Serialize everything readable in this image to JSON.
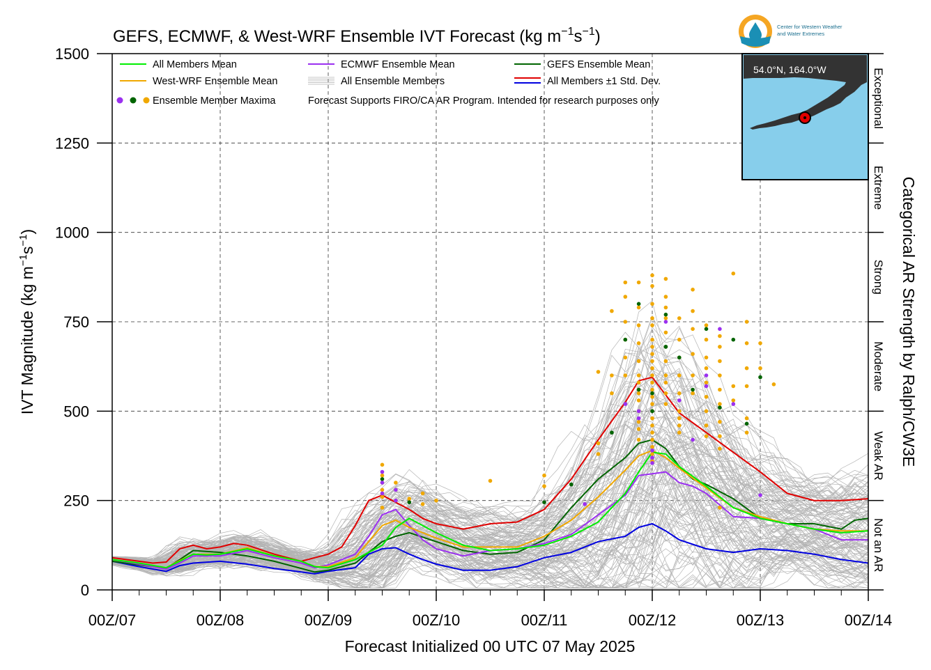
{
  "chart_data": {
    "type": "line",
    "title_main": "GEFS, ECMWF, & West-WRF Ensemble IVT Forecast (kg m",
    "title_unit_tail": "s",
    "title_sup1": "−1",
    "title_sup2": "−1",
    "title_close": ")",
    "xlabel": "Forecast Initialized 00 UTC 07 May 2025",
    "ylabel_main": "IVT Magnitude (kg m",
    "ylabel_tail": "s",
    "ylabel_sup1": "−1",
    "ylabel_sup2": "−1",
    "ylabel_close": ")",
    "right_axis_label": "Categorical AR Strength by Ralph/CW3E",
    "ylim": [
      0,
      1500
    ],
    "xlim": [
      0,
      168
    ],
    "x_units": "forecast hours from 00Z/07",
    "yticks": [
      0,
      250,
      500,
      750,
      1000,
      1250,
      1500
    ],
    "ytick_labels": [
      "0",
      "250",
      "500",
      "750",
      "1000",
      "1250",
      "1500"
    ],
    "xticks": [
      0,
      24,
      48,
      72,
      96,
      120,
      144,
      168
    ],
    "xtick_labels": [
      "00Z/07",
      "00Z/08",
      "00Z/09",
      "00Z/10",
      "00Z/11",
      "00Z/12",
      "00Z/13",
      "00Z/14"
    ],
    "grid": true,
    "categories_right": [
      {
        "label": "Not an AR",
        "from": 0,
        "to": 250
      },
      {
        "label": "Weak AR",
        "from": 250,
        "to": 500
      },
      {
        "label": "Moderate",
        "from": 500,
        "to": 750
      },
      {
        "label": "Strong",
        "from": 750,
        "to": 1000
      },
      {
        "label": "Extreme",
        "from": 1000,
        "to": 1250
      },
      {
        "label": "Exceptional",
        "from": 1250,
        "to": 1500
      }
    ],
    "legend": {
      "placement": "top-left",
      "items": [
        {
          "label": "All Members Mean",
          "color": "#00ee00",
          "kind": "line"
        },
        {
          "label": "ECMWF Ensemble Mean",
          "color": "#9b30f0",
          "kind": "line"
        },
        {
          "label": "GEFS Ensemble Mean",
          "color": "#006400",
          "kind": "line"
        },
        {
          "label": "West-WRF Ensemble Mean",
          "color": "#f0a800",
          "kind": "line"
        },
        {
          "label": "All Ensemble Members",
          "color": "#b0b0b0",
          "kind": "multiline"
        },
        {
          "label": "All Members ±1 Std. Dev.",
          "color": "#e00000",
          "color2": "#0000e0",
          "kind": "dualline"
        },
        {
          "label": "Ensemble Member Maxima",
          "colors": [
            "#9b30f0",
            "#006400",
            "#f0a800"
          ],
          "kind": "dots"
        }
      ],
      "note": "Forecast Supports FIRO/CA AR Program. Intended for research purposes only"
    },
    "inset": {
      "label": "54.0°N, 164.0°W",
      "ocean_color": "#87ceeb",
      "land_color": "#333333"
    },
    "logo": {
      "line1": "Center for Western Weather",
      "line2": "and Water Extremes"
    },
    "series": [
      {
        "name": "All Members Mean",
        "color": "#00ee00",
        "x": [
          0,
          6,
          12,
          15,
          18,
          21,
          24,
          30,
          36,
          42,
          45,
          48,
          54,
          60,
          63,
          66,
          69,
          72,
          78,
          84,
          90,
          96,
          102,
          108,
          114,
          117,
          120,
          123,
          126,
          132,
          138,
          144,
          150,
          156,
          162,
          168
        ],
        "y": [
          85,
          75,
          62,
          80,
          100,
          98,
          100,
          115,
          95,
          80,
          65,
          62,
          85,
          125,
          175,
          200,
          180,
          160,
          125,
          110,
          115,
          125,
          150,
          190,
          270,
          330,
          385,
          380,
          345,
          290,
          230,
          200,
          185,
          170,
          160,
          165
        ]
      },
      {
        "name": "ECMWF Ensemble Mean",
        "color": "#9b30f0",
        "x": [
          0,
          6,
          12,
          15,
          18,
          24,
          30,
          36,
          42,
          45,
          48,
          54,
          57,
          60,
          63,
          66,
          69,
          72,
          78,
          84,
          90,
          96,
          102,
          108,
          114,
          117,
          120,
          123,
          126,
          129,
          132,
          138,
          144,
          150,
          156,
          162,
          168
        ],
        "y": [
          85,
          72,
          58,
          75,
          95,
          95,
          110,
          90,
          75,
          62,
          70,
          100,
          150,
          210,
          225,
          180,
          140,
          115,
          95,
          110,
          115,
          130,
          155,
          210,
          265,
          320,
          325,
          330,
          300,
          290,
          270,
          205,
          200,
          185,
          170,
          140,
          140
        ]
      },
      {
        "name": "GEFS Ensemble Mean",
        "color": "#006400",
        "x": [
          0,
          6,
          12,
          15,
          18,
          24,
          30,
          36,
          42,
          45,
          48,
          54,
          60,
          63,
          66,
          72,
          78,
          84,
          90,
          96,
          102,
          108,
          114,
          117,
          120,
          123,
          126,
          129,
          132,
          138,
          144,
          150,
          156,
          162,
          165,
          168
        ],
        "y": [
          80,
          70,
          60,
          85,
          110,
          105,
          95,
          80,
          60,
          50,
          55,
          75,
          135,
          150,
          160,
          135,
          110,
          100,
          105,
          140,
          230,
          310,
          370,
          410,
          420,
          395,
          345,
          310,
          295,
          255,
          200,
          185,
          185,
          170,
          195,
          200
        ]
      },
      {
        "name": "West-WRF Ensemble Mean",
        "color": "#f0a800",
        "x": [
          0,
          6,
          12,
          15,
          18,
          24,
          30,
          36,
          42,
          45,
          48,
          54,
          57,
          60,
          63,
          66,
          69,
          72,
          78,
          84,
          90,
          96,
          102,
          108,
          114,
          117,
          120,
          123,
          126,
          132,
          138,
          144,
          150,
          156,
          162,
          168
        ],
        "y": [
          85,
          75,
          62,
          82,
          100,
          100,
          118,
          95,
          80,
          65,
          65,
          90,
          135,
          180,
          195,
          175,
          160,
          145,
          120,
          120,
          120,
          150,
          195,
          260,
          335,
          375,
          390,
          370,
          340,
          285,
          230,
          205,
          185,
          170,
          165,
          165
        ]
      },
      {
        "name": "All Members +1 Std. Dev.",
        "color": "#e00000",
        "x": [
          0,
          6,
          9,
          12,
          15,
          18,
          21,
          24,
          27,
          30,
          36,
          42,
          45,
          48,
          51,
          54,
          57,
          60,
          63,
          66,
          69,
          72,
          78,
          84,
          90,
          96,
          102,
          108,
          114,
          117,
          120,
          123,
          126,
          132,
          138,
          144,
          150,
          156,
          162,
          168
        ],
        "y": [
          90,
          80,
          75,
          78,
          115,
          125,
          115,
          120,
          130,
          125,
          100,
          80,
          90,
          100,
          120,
          180,
          250,
          265,
          245,
          225,
          200,
          185,
          170,
          185,
          190,
          225,
          310,
          420,
          525,
          585,
          595,
          545,
          495,
          440,
          385,
          330,
          270,
          250,
          250,
          255
        ]
      },
      {
        "name": "All Members -1 Std. Dev.",
        "color": "#0000e0",
        "x": [
          0,
          6,
          12,
          15,
          18,
          24,
          30,
          36,
          42,
          45,
          48,
          54,
          57,
          60,
          63,
          66,
          69,
          72,
          78,
          84,
          90,
          96,
          102,
          108,
          114,
          117,
          120,
          123,
          126,
          132,
          138,
          144,
          150,
          156,
          162,
          168
        ],
        "y": [
          80,
          65,
          52,
          68,
          75,
          80,
          72,
          60,
          50,
          45,
          52,
          62,
          100,
          115,
          118,
          100,
          85,
          72,
          55,
          55,
          65,
          90,
          105,
          135,
          150,
          175,
          185,
          165,
          140,
          115,
          105,
          115,
          110,
          100,
          85,
          75
        ]
      }
    ],
    "maxima": {
      "ecmwf": [
        [
          60,
          330
        ],
        [
          60,
          300
        ],
        [
          60,
          270
        ],
        [
          63,
          250
        ],
        [
          63,
          280
        ],
        [
          105,
          240
        ],
        [
          114,
          520
        ],
        [
          117,
          480
        ],
        [
          117,
          500
        ],
        [
          120,
          390
        ],
        [
          120,
          370
        ],
        [
          120,
          355
        ],
        [
          123,
          750
        ],
        [
          126,
          530
        ],
        [
          129,
          420
        ],
        [
          132,
          600
        ],
        [
          132,
          570
        ],
        [
          135,
          730
        ],
        [
          138,
          520
        ],
        [
          144,
          265
        ]
      ],
      "gefs": [
        [
          60,
          310
        ],
        [
          66,
          245
        ],
        [
          96,
          245
        ],
        [
          102,
          295
        ],
        [
          111,
          440
        ],
        [
          114,
          700
        ],
        [
          117,
          800
        ],
        [
          117,
          560
        ],
        [
          120,
          550
        ],
        [
          120,
          500
        ],
        [
          123,
          770
        ],
        [
          123,
          680
        ],
        [
          123,
          680
        ],
        [
          126,
          650
        ],
        [
          129,
          560
        ],
        [
          132,
          730
        ],
        [
          135,
          510
        ],
        [
          138,
          700
        ],
        [
          141,
          465
        ],
        [
          144,
          595
        ]
      ],
      "wwrf": [
        [
          60,
          350
        ],
        [
          60,
          320
        ],
        [
          60,
          300
        ],
        [
          60,
          280
        ],
        [
          60,
          260
        ],
        [
          60,
          230
        ],
        [
          63,
          300
        ],
        [
          63,
          280
        ],
        [
          63,
          250
        ],
        [
          66,
          255
        ],
        [
          69,
          270
        ],
        [
          69,
          240
        ],
        [
          72,
          250
        ],
        [
          84,
          305
        ],
        [
          96,
          320
        ],
        [
          96,
          290
        ],
        [
          108,
          380
        ],
        [
          108,
          410
        ],
        [
          111,
          780
        ],
        [
          111,
          600
        ],
        [
          111,
          550
        ],
        [
          114,
          820
        ],
        [
          114,
          750
        ],
        [
          114,
          700
        ],
        [
          114,
          650
        ],
        [
          114,
          600
        ],
        [
          117,
          860
        ],
        [
          117,
          790
        ],
        [
          117,
          740
        ],
        [
          117,
          690
        ],
        [
          117,
          640
        ],
        [
          117,
          600
        ],
        [
          117,
          580
        ],
        [
          117,
          550
        ],
        [
          117,
          530
        ],
        [
          117,
          500
        ],
        [
          117,
          470
        ],
        [
          117,
          450
        ],
        [
          117,
          420
        ],
        [
          120,
          880
        ],
        [
          120,
          850
        ],
        [
          120,
          800
        ],
        [
          120,
          760
        ],
        [
          120,
          740
        ],
        [
          120,
          700
        ],
        [
          120,
          680
        ],
        [
          120,
          660
        ],
        [
          120,
          640
        ],
        [
          120,
          620
        ],
        [
          120,
          600
        ],
        [
          120,
          580
        ],
        [
          120,
          560
        ],
        [
          120,
          540
        ],
        [
          120,
          520
        ],
        [
          120,
          500
        ],
        [
          120,
          480
        ],
        [
          120,
          460
        ],
        [
          120,
          440
        ],
        [
          120,
          420
        ],
        [
          120,
          400
        ],
        [
          120,
          380
        ],
        [
          120,
          360
        ],
        [
          123,
          870
        ],
        [
          123,
          820
        ],
        [
          123,
          790
        ],
        [
          123,
          760
        ],
        [
          123,
          720
        ],
        [
          123,
          680
        ],
        [
          123,
          640
        ],
        [
          123,
          600
        ],
        [
          123,
          580
        ],
        [
          123,
          550
        ],
        [
          123,
          520
        ],
        [
          126,
          760
        ],
        [
          126,
          700
        ],
        [
          126,
          650
        ],
        [
          126,
          600
        ],
        [
          126,
          550
        ],
        [
          126,
          500
        ],
        [
          126,
          480
        ],
        [
          126,
          460
        ],
        [
          126,
          440
        ],
        [
          129,
          840
        ],
        [
          129,
          780
        ],
        [
          129,
          730
        ],
        [
          129,
          660
        ],
        [
          129,
          600
        ],
        [
          129,
          550
        ],
        [
          132,
          740
        ],
        [
          132,
          700
        ],
        [
          132,
          650
        ],
        [
          132,
          620
        ],
        [
          132,
          580
        ],
        [
          132,
          540
        ],
        [
          132,
          500
        ],
        [
          132,
          460
        ],
        [
          132,
          430
        ],
        [
          135,
          710
        ],
        [
          135,
          680
        ],
        [
          135,
          640
        ],
        [
          135,
          600
        ],
        [
          135,
          560
        ],
        [
          135,
          520
        ],
        [
          135,
          470
        ],
        [
          135,
          430
        ],
        [
          135,
          395
        ],
        [
          135,
          230
        ],
        [
          138,
          570
        ],
        [
          138,
          530
        ],
        [
          141,
          750
        ],
        [
          141,
          690
        ],
        [
          141,
          620
        ],
        [
          141,
          570
        ],
        [
          141,
          480
        ],
        [
          141,
          440
        ],
        [
          144,
          690
        ],
        [
          144,
          620
        ],
        [
          147,
          575
        ],
        [
          138,
          885
        ],
        [
          114,
          860
        ],
        [
          108,
          610
        ]
      ]
    }
  }
}
